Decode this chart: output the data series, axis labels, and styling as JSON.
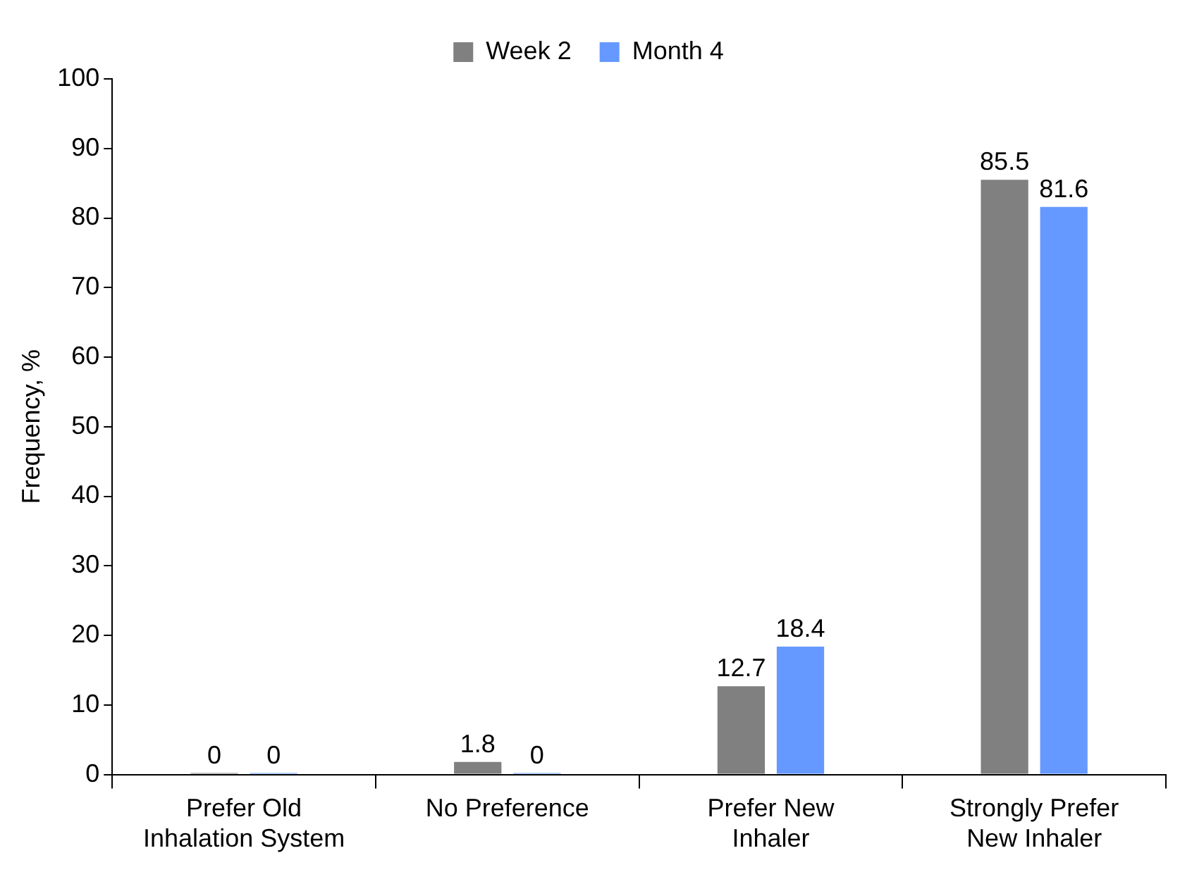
{
  "chart_data": {
    "type": "bar",
    "categories": [
      "Prefer Old Inhalation System",
      "No Preference",
      "Prefer New Inhaler",
      "Strongly Prefer New Inhaler"
    ],
    "series": [
      {
        "name": "Week 2",
        "color": "#808080",
        "values": [
          0,
          1.8,
          12.7,
          85.5
        ]
      },
      {
        "name": "Month 4",
        "color": "#6699ff",
        "values": [
          0,
          0,
          18.4,
          81.6
        ]
      }
    ],
    "ylabel": "Frequency, %",
    "ylim": [
      0,
      100
    ],
    "yticks": [
      0,
      10,
      20,
      30,
      40,
      50,
      60,
      70,
      80,
      90,
      100
    ],
    "grid": false,
    "legend": "top",
    "data_labels": true
  }
}
